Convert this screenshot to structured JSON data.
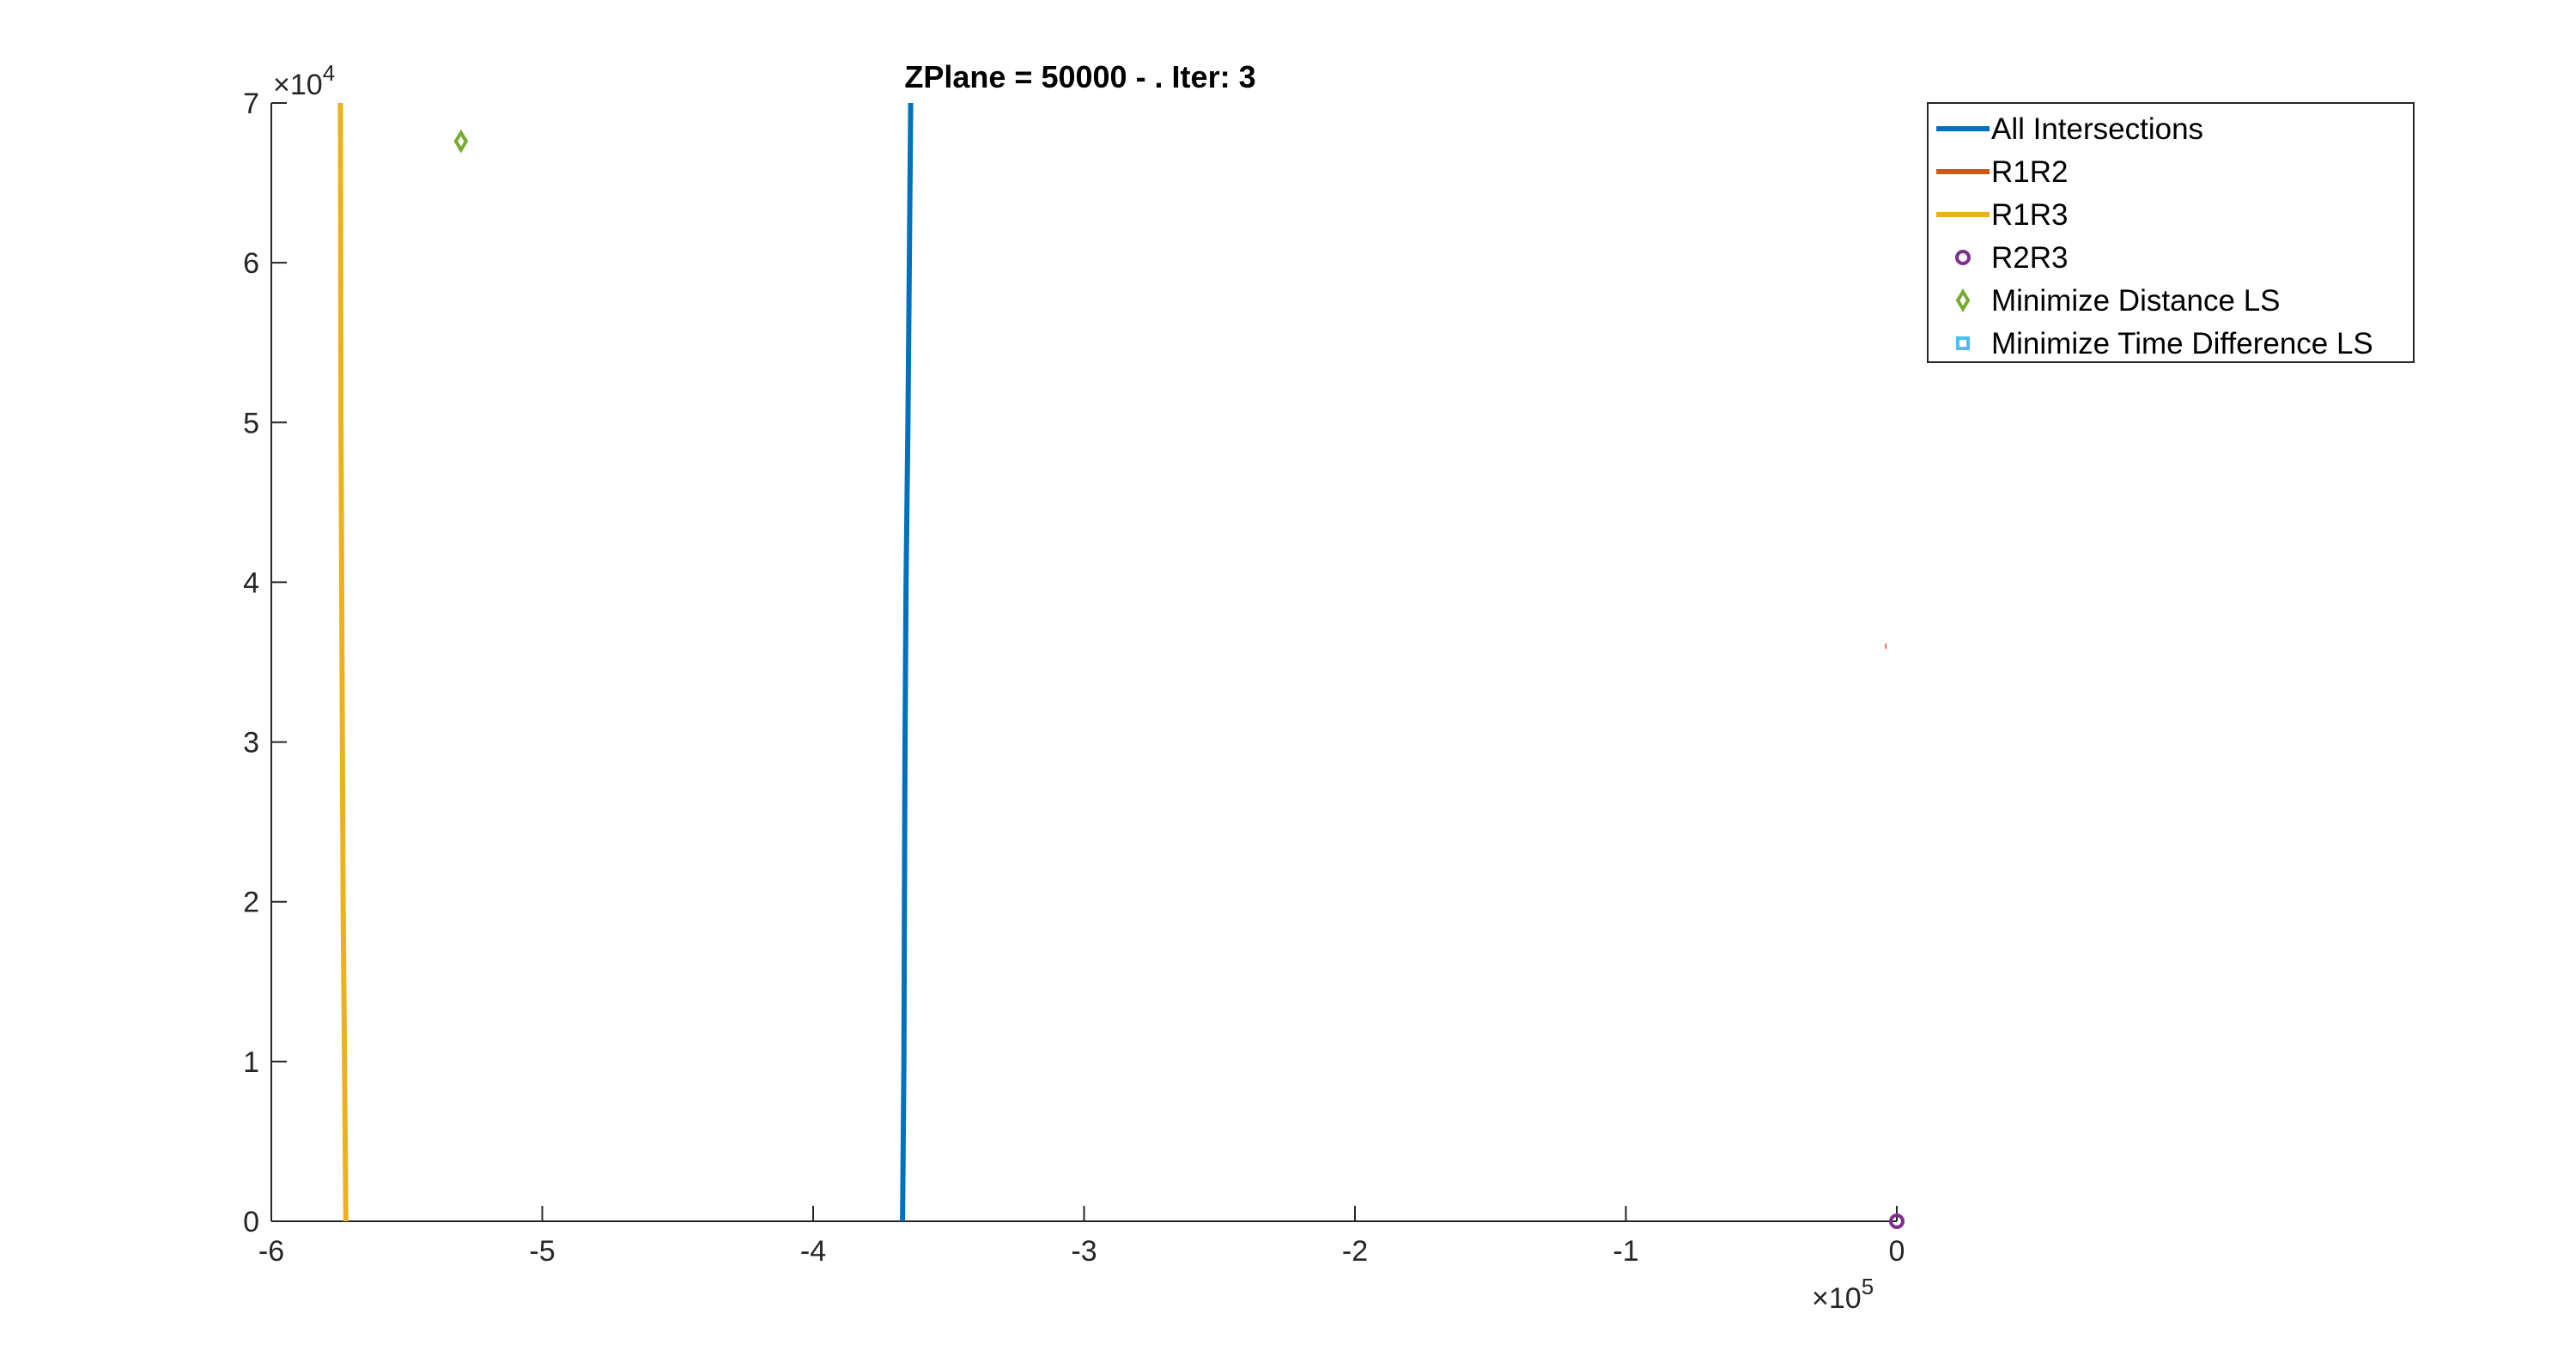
{
  "chart_data": {
    "type": "line",
    "title": "ZPlane = 50000 - . Iter: 3",
    "xlabel": "",
    "ylabel": "",
    "xlim": [
      -600000,
      0
    ],
    "ylim": [
      0,
      70000
    ],
    "x_ticks": [
      -600000,
      -500000,
      -400000,
      -300000,
      -200000,
      -100000,
      0
    ],
    "x_tick_labels": [
      "-6",
      "-5",
      "-4",
      "-3",
      "-2",
      "-1",
      "0"
    ],
    "y_ticks": [
      0,
      10000,
      20000,
      30000,
      40000,
      50000,
      60000,
      70000
    ],
    "y_tick_labels": [
      "0",
      "1",
      "2",
      "3",
      "4",
      "5",
      "6",
      "7"
    ],
    "x_exponent": {
      "base": "×10",
      "power": "5"
    },
    "y_exponent": {
      "base": "×10",
      "power": "4"
    },
    "grid": false,
    "legend_position": "top-right",
    "series": [
      {
        "name": "All Intersections",
        "kind": "line",
        "color": "#0072BD",
        "x": [
          -367000,
          -366500,
          -366300,
          -366100,
          -365700,
          -365000,
          -364000
        ],
        "y": [
          0,
          10000,
          20000,
          30000,
          40000,
          50000,
          70000
        ]
      },
      {
        "name": "R1R2",
        "kind": "line",
        "color": "#D95319",
        "x": [
          -4300,
          -3800
        ],
        "y": [
          36000,
          36000
        ]
      },
      {
        "name": "R1R3",
        "kind": "line",
        "color": "#EDB120",
        "x": [
          -572500,
          -573500,
          -574300,
          -574500
        ],
        "y": [
          0,
          20000,
          50000,
          70000
        ]
      },
      {
        "name": "R2R3",
        "kind": "marker",
        "marker": "circle",
        "color": "#7E2F8E",
        "x": [
          0
        ],
        "y": [
          0
        ]
      },
      {
        "name": "Minimize Distance LS",
        "kind": "marker",
        "marker": "diamond",
        "color": "#77AC30",
        "x": [
          -530000
        ],
        "y": [
          67600
        ]
      },
      {
        "name": "Minimize Time Difference LS",
        "kind": "marker",
        "marker": "square",
        "color": "#4DBEEE",
        "x": [],
        "y": []
      }
    ]
  }
}
